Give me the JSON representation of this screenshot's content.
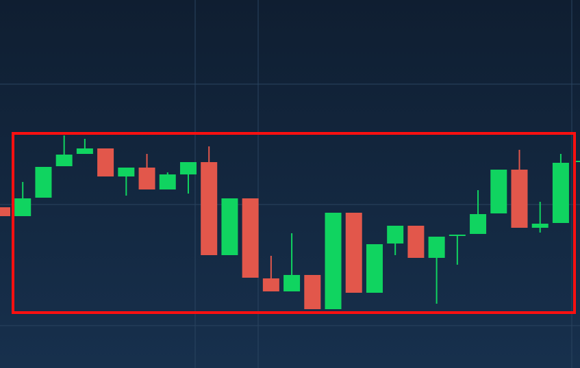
{
  "chart_data": {
    "type": "candlestick",
    "open": [
      235,
      222,
      249,
      295,
      313,
      321,
      280,
      293,
      261,
      283,
      301,
      165,
      248,
      131,
      112,
      136,
      86,
      227,
      110,
      182,
      208,
      161,
      193,
      196,
      226,
      290,
      205,
      212,
      301
    ],
    "high": [
      235,
      272,
      294,
      340,
      335,
      321,
      293,
      313,
      286,
      301,
      324,
      248,
      248,
      164,
      197,
      136,
      227,
      227,
      181,
      208,
      208,
      192,
      195,
      260,
      290,
      319,
      243,
      313,
      303
    ],
    "low": [
      222,
      222,
      249,
      295,
      313,
      280,
      252,
      261,
      261,
      255,
      165,
      165,
      132,
      112,
      112,
      86,
      86,
      110,
      110,
      165,
      161,
      94,
      151,
      196,
      226,
      205,
      198,
      212,
      301
    ],
    "close": [
      222,
      248,
      294,
      312,
      321,
      280,
      293,
      261,
      283,
      301,
      165,
      248,
      132,
      112,
      136,
      86,
      227,
      110,
      181,
      208,
      161,
      192,
      195,
      225,
      290,
      205,
      211,
      300,
      303
    ],
    "up_color": "#10d460",
    "down_color": "#e2574b",
    "ylim": [
      0,
      538
    ]
  }
}
